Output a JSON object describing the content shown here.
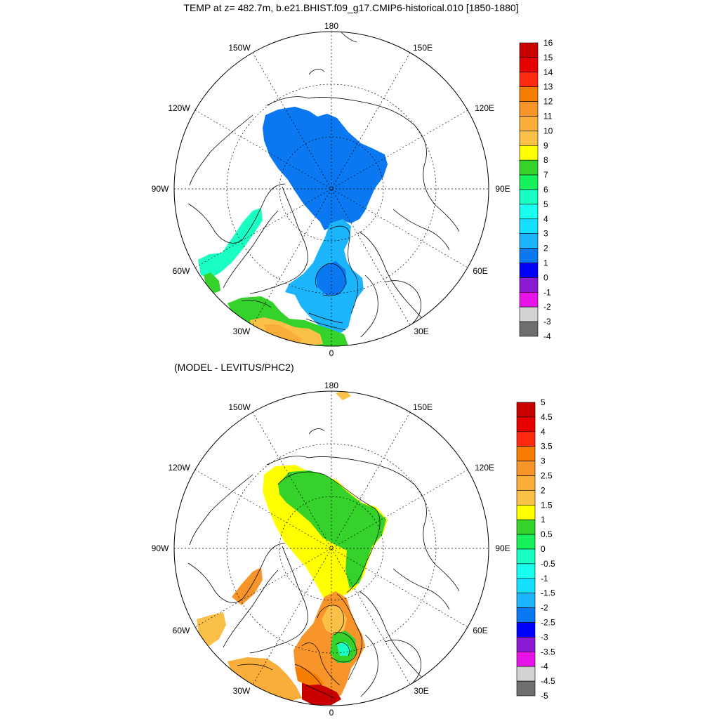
{
  "top_map": {
    "title": "TEMP at z= 482.7m, b.e21.BHIST.f09_g17.CMIP6-historical.010 [1850-1880]",
    "lon_labels": [
      "180",
      "150E",
      "120E",
      "90E",
      "60E",
      "30E",
      "0",
      "30W",
      "60W",
      "90W",
      "120W",
      "150W"
    ],
    "colorbar": {
      "labels": [
        "16",
        "15",
        "14",
        "13",
        "12",
        "11",
        "10",
        "9",
        "8",
        "7",
        "6",
        "5",
        "4",
        "3",
        "2",
        "1",
        "0",
        "-1",
        "-2",
        "-3",
        "-4"
      ],
      "colors": [
        "#c80000",
        "#e60000",
        "#ff2a10",
        "#f57d00",
        "#f7952a",
        "#f9ad3a",
        "#fbc048",
        "#ffff00",
        "#36d22c",
        "#16f05a",
        "#19ffc4",
        "#18fff0",
        "#16e0ff",
        "#1cb4fa",
        "#0a78f0",
        "#0000ff",
        "#8c1ad2",
        "#e614e6",
        "#d2d2d2",
        "#6e6e6e"
      ]
    }
  },
  "bottom_map": {
    "title": "(MODEL - LEVITUS/PHC2)",
    "lon_labels": [
      "180",
      "150E",
      "120E",
      "90E",
      "60E",
      "30E",
      "0",
      "30W",
      "60W",
      "90W",
      "120W",
      "150W"
    ],
    "colorbar": {
      "labels": [
        "5",
        "4.5",
        "4",
        "3.5",
        "3",
        "2.5",
        "2",
        "1.5",
        "1",
        "0.5",
        "0",
        "-0.5",
        "-1",
        "-1.5",
        "-2",
        "-2.5",
        "-3",
        "-3.5",
        "-4",
        "-4.5",
        "-5"
      ],
      "colors": [
        "#c80000",
        "#e60000",
        "#ff2a10",
        "#f57d00",
        "#f7952a",
        "#f9ad3a",
        "#fbc048",
        "#ffff00",
        "#36d22c",
        "#16f05a",
        "#19ffc4",
        "#18fff0",
        "#16e0ff",
        "#1cb4fa",
        "#0a78f0",
        "#0000ff",
        "#8c1ad2",
        "#e614e6",
        "#d2d2d2",
        "#6e6e6e"
      ]
    }
  }
}
